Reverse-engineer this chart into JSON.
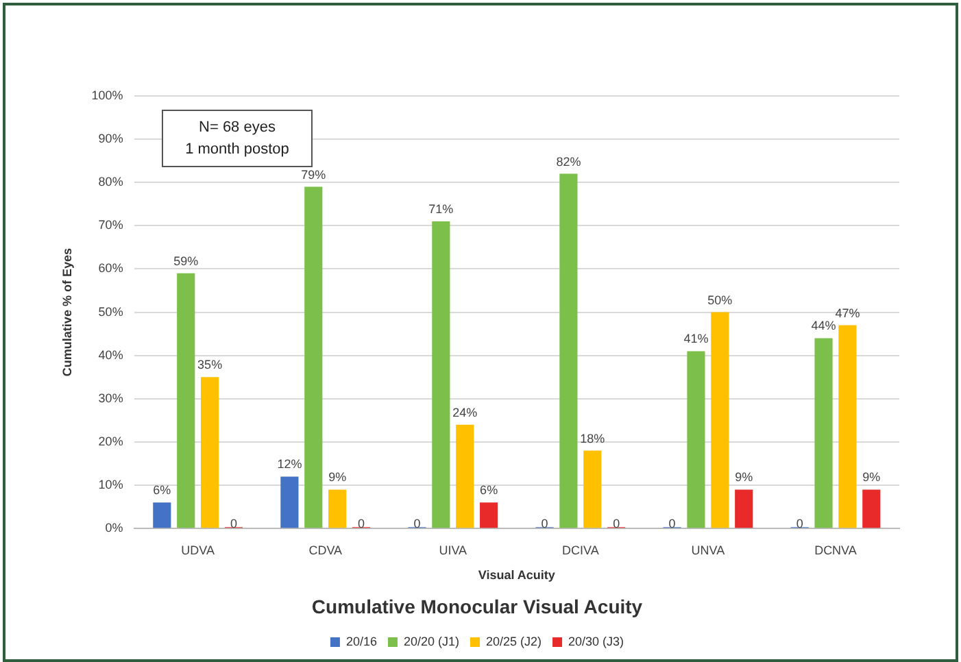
{
  "chart_data": {
    "type": "bar",
    "title": "Cumulative Monocular Visual Acuity",
    "xlabel": "Visual Acuity",
    "ylabel": "Cumulative % of Eyes",
    "categories": [
      "UDVA",
      "CDVA",
      "UIVA",
      "DCIVA",
      "UNVA",
      "DCNVA"
    ],
    "series": [
      {
        "name": "20/16",
        "color": "#4472c4",
        "values": [
          6,
          12,
          0,
          0,
          0,
          0
        ],
        "value_labels": [
          "6%",
          "12%",
          "0",
          "0",
          "0",
          "0"
        ]
      },
      {
        "name": "20/20 (J1)",
        "color": "#7cbf4a",
        "values": [
          59,
          79,
          71,
          82,
          41,
          44
        ],
        "value_labels": [
          "59%",
          "79%",
          "71%",
          "82%",
          "41%",
          "44%"
        ]
      },
      {
        "name": "20/25 (J2)",
        "color": "#ffc000",
        "values": [
          35,
          9,
          24,
          18,
          50,
          47
        ],
        "value_labels": [
          "35%",
          "9%",
          "24%",
          "18%",
          "50%",
          "47%"
        ]
      },
      {
        "name": "20/30 (J3)",
        "color": "#e82a2a",
        "values": [
          0,
          0,
          6,
          0,
          9,
          9
        ],
        "value_labels": [
          "0",
          "0",
          "6%",
          "0",
          "9%",
          "9%"
        ]
      }
    ],
    "ylim": [
      0,
      100
    ],
    "yticks": [
      {
        "value": 0,
        "label": "0%"
      },
      {
        "value": 10,
        "label": "10%"
      },
      {
        "value": 20,
        "label": "20%"
      },
      {
        "value": 30,
        "label": "30%"
      },
      {
        "value": 40,
        "label": "40%"
      },
      {
        "value": 50,
        "label": "50%"
      },
      {
        "value": 60,
        "label": "60%"
      },
      {
        "value": 70,
        "label": "70%"
      },
      {
        "value": 80,
        "label": "80%"
      },
      {
        "value": 90,
        "label": "90%"
      },
      {
        "value": 100,
        "label": "100%"
      }
    ],
    "grid": "y",
    "legend": "bottom",
    "annotations": [
      "N= 68 eyes",
      "1 month postop"
    ]
  }
}
